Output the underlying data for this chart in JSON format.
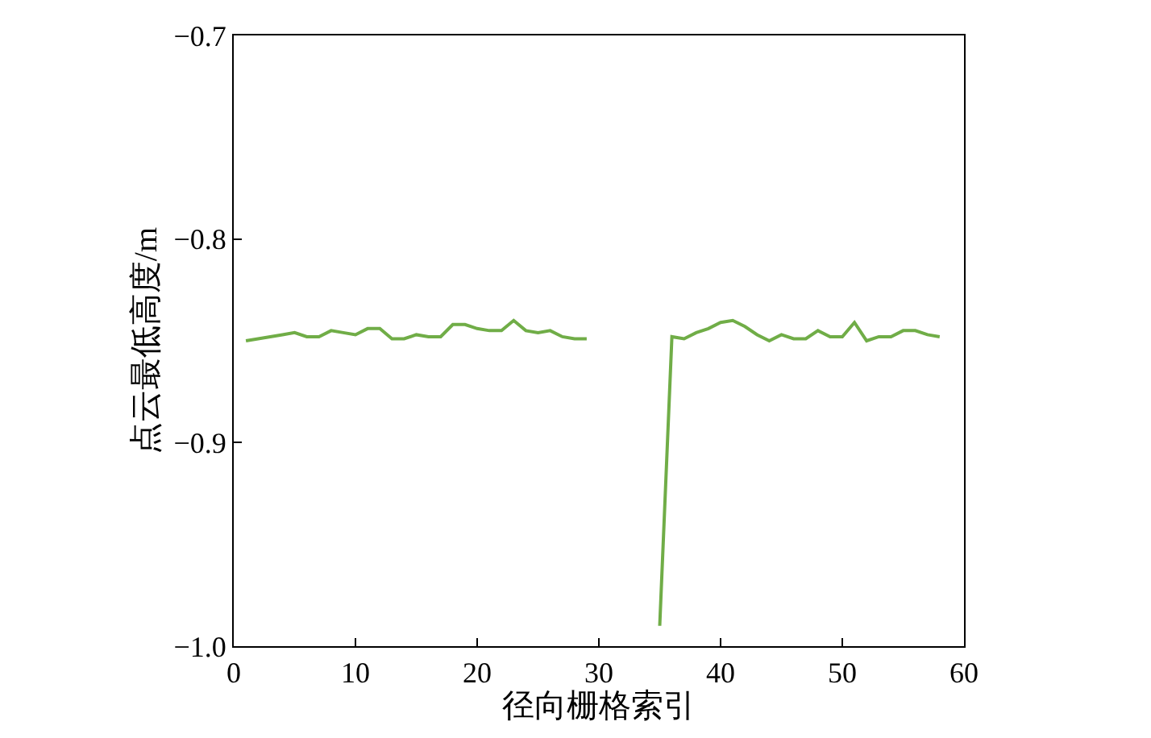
{
  "chart_data": {
    "type": "line",
    "xlabel": "径向栅格索引",
    "ylabel": "点云最低高度/m",
    "x": [
      1,
      2,
      3,
      4,
      5,
      6,
      7,
      8,
      9,
      10,
      11,
      12,
      13,
      14,
      15,
      16,
      17,
      18,
      19,
      20,
      21,
      22,
      23,
      24,
      25,
      26,
      27,
      28,
      29,
      30,
      35,
      36,
      37,
      38,
      39,
      40,
      41,
      42,
      43,
      44,
      45,
      46,
      47,
      48,
      49,
      50,
      51,
      52,
      53,
      54,
      55,
      56,
      57,
      58
    ],
    "series": [
      {
        "color": "#70ad47",
        "values": [
          -0.85,
          -0.849,
          -0.848,
          -0.847,
          -0.846,
          -0.848,
          -0.848,
          -0.845,
          -0.846,
          -0.847,
          -0.844,
          -0.844,
          -0.849,
          -0.849,
          -0.847,
          -0.848,
          -0.848,
          -0.842,
          -0.842,
          -0.844,
          -0.845,
          -0.845,
          -0.84,
          -0.845,
          -0.846,
          -0.845,
          -0.848,
          -0.849,
          -0.849,
          null,
          -0.99,
          -0.848,
          -0.849,
          -0.846,
          -0.844,
          -0.841,
          -0.84,
          -0.843,
          -0.847,
          -0.85,
          -0.847,
          -0.849,
          -0.849,
          -0.845,
          -0.848,
          -0.848,
          -0.841,
          -0.85,
          -0.848,
          -0.848,
          -0.845,
          -0.845,
          -0.847,
          -0.848
        ]
      }
    ],
    "xlim": [
      0,
      60
    ],
    "xticks": [
      0,
      10,
      20,
      30,
      40,
      50,
      60
    ],
    "ylim": [
      -1.0,
      -0.7
    ],
    "yticks": [
      {
        "value": -1.0,
        "label": "−1.0"
      },
      {
        "value": -0.9,
        "label": "−0.9"
      },
      {
        "value": -0.8,
        "label": "−0.8"
      },
      {
        "value": -0.7,
        "label": "−0.7"
      }
    ],
    "legend": false,
    "marker": "none",
    "line_style": "solid"
  }
}
